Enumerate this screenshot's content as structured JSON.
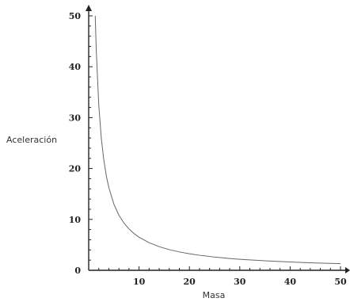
{
  "chart_data": {
    "type": "line",
    "title": "",
    "xlabel": "Masa",
    "ylabel": "Aceleración",
    "xlim": [
      0,
      50
    ],
    "ylim": [
      0,
      50
    ],
    "x_ticks": [
      10,
      20,
      30,
      40,
      50
    ],
    "y_ticks": [
      0,
      10,
      20,
      30,
      40,
      50
    ],
    "grid": false,
    "legend": "none",
    "series": [
      {
        "x": [
          1.3,
          1.5,
          2,
          2.5,
          3,
          3.5,
          4,
          5,
          6,
          7,
          8,
          9,
          10,
          12,
          14,
          16,
          18,
          20,
          22,
          25,
          28,
          30,
          35,
          40,
          45,
          50
        ],
        "values": [
          50,
          43.33,
          32.5,
          26,
          21.67,
          18.57,
          16.25,
          13,
          10.83,
          9.29,
          8.13,
          7.22,
          6.5,
          5.42,
          4.64,
          4.06,
          3.61,
          3.25,
          2.95,
          2.6,
          2.32,
          2.17,
          1.86,
          1.63,
          1.44,
          1.3
        ]
      }
    ],
    "color": "#666666"
  }
}
